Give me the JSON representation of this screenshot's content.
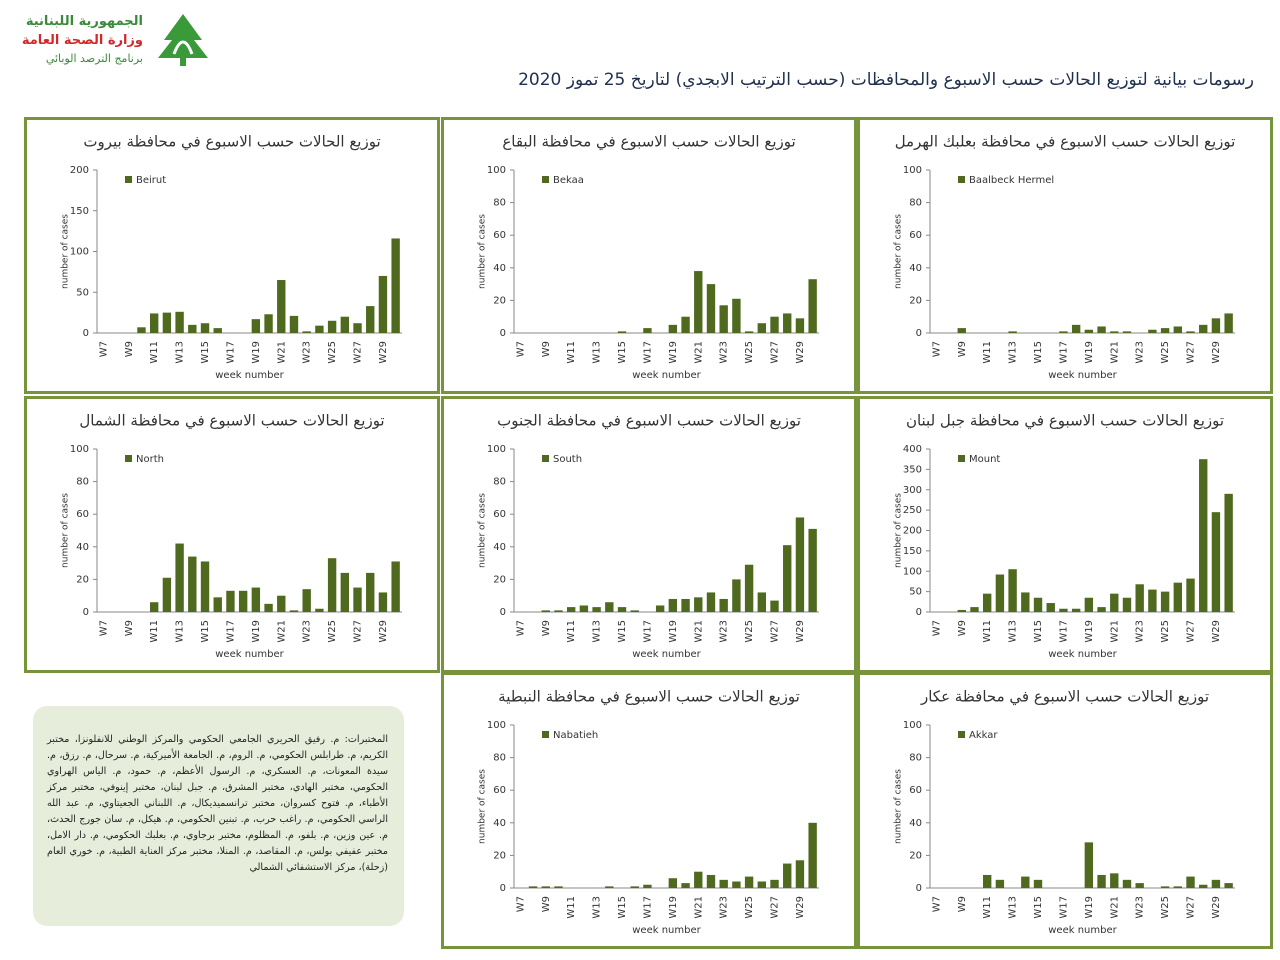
{
  "header": {
    "org_lines": [
      "الجمهورية اللبنانية",
      "وزارة الصحة العامة",
      "برنامج الترصد الوبائي"
    ]
  },
  "title": "رسومات بيانية لتوزيع الحالات حسب الاسبوع  والمحافظات (حسب الترتيب الابجدي) لتاريخ  25 تموز 2020",
  "note": "المختبرات: م. رفيق الحريري الجامعي الحكومي والمركز الوطني للانفلونزا، مختبر الكريم، م. طرابلس الحكومي، م. الروم، م. الجامعة الأميركية، م. سرحال، م. رزق، م. سيدة المعونات، م. العسكري، م. الرسول الأعظم، م. حمود، م. الياس الهراوي الحكومي، مختبر الهادي، مختبر المشرق، م. جبل لبنان، مختبر إينوفي، مختبر مركز الأطباء، م. فتوح كسروان، مختبر ترانسميديكال، م. اللبناني الجعيتاوي، م. عبد الله الراسي الحكومي، م. راغب حرب، م. تبنين الحكومي، م. هيكل، م. سان جورج الحدث، م. عين وزين، م. بلفو، م. المظلوم، مختبر برجاوي، م. بعلبك الحكومي، م. دار الامل، مختبر عفيفي بولس، م. المقاصد، م. المنلا، مختبر مركز العناية الطبية، م. خوري العام (زحلة)، مركز الاستشفائي الشمالي",
  "chart_data": [
    {
      "type": "bar",
      "title": "توزيع الحالات حسب الاسبوع  في محافظة بيروت",
      "x_label": "week number",
      "y_label": "number of cases",
      "color": "#4f6a1f",
      "categories": [
        "W7",
        null,
        "W9",
        null,
        "W11",
        null,
        "W13",
        null,
        "W15",
        null,
        "W17",
        null,
        "W19",
        null,
        "W21",
        null,
        "W23",
        null,
        "W25",
        null,
        "W27",
        null,
        "W29",
        null
      ],
      "series": [
        {
          "name": "Beirut",
          "color": "#4f6a1f",
          "values": [
            0,
            0,
            0,
            7,
            24,
            25,
            26,
            10,
            12,
            6,
            0,
            0,
            17,
            23,
            65,
            21,
            2,
            9,
            15,
            20,
            12,
            33,
            70,
            116
          ]
        }
      ],
      "ylim": [
        0,
        200
      ],
      "yticks": [
        0,
        50,
        100,
        150,
        200
      ]
    },
    {
      "type": "bar",
      "title": "توزيع الحالات حسب الاسبوع  في محافظة البقاع",
      "x_label": "week number",
      "y_label": "number of cases",
      "color": "#4f6a1f",
      "categories": [
        "W7",
        null,
        "W9",
        null,
        "W11",
        null,
        "W13",
        null,
        "W15",
        null,
        "W17",
        null,
        "W19",
        null,
        "W21",
        null,
        "W23",
        null,
        "W25",
        null,
        "W27",
        null,
        "W29",
        null
      ],
      "series": [
        {
          "name": "Bekaa",
          "color": "#4f6a1f",
          "values": [
            0,
            0,
            0,
            0,
            0,
            0,
            0,
            0,
            1,
            0,
            3,
            0,
            5,
            10,
            38,
            30,
            17,
            21,
            1,
            6,
            10,
            12,
            9,
            33
          ]
        }
      ],
      "ylim": [
        0,
        100
      ],
      "yticks": [
        0,
        20,
        40,
        60,
        80,
        100
      ]
    },
    {
      "type": "bar",
      "title": "توزيع الحالات حسب الاسبوع  في محافظة بعلبك الهرمل",
      "x_label": "week number",
      "y_label": "number of cases",
      "color": "#4f6a1f",
      "categories": [
        "W7",
        null,
        "W9",
        null,
        "W11",
        null,
        "W13",
        null,
        "W15",
        null,
        "W17",
        null,
        "W19",
        null,
        "W21",
        null,
        "W23",
        null,
        "W25",
        null,
        "W27",
        null,
        "W29",
        null
      ],
      "series": [
        {
          "name": "Baalbeck Hermel",
          "color": "#4f6a1f",
          "values": [
            0,
            0,
            3,
            0,
            0,
            0,
            1,
            0,
            0,
            0,
            1,
            5,
            2,
            4,
            1,
            1,
            0,
            2,
            3,
            4,
            1,
            5,
            9,
            12
          ]
        }
      ],
      "ylim": [
        0,
        100
      ],
      "yticks": [
        0,
        20,
        40,
        60,
        80,
        100
      ]
    },
    {
      "type": "bar",
      "title": "توزيع الحالات حسب الاسبوع  في محافظة الشمال",
      "x_label": "week number",
      "y_label": "number of cases",
      "color": "#4f6a1f",
      "categories": [
        "W7",
        null,
        "W9",
        null,
        "W11",
        null,
        "W13",
        null,
        "W15",
        null,
        "W17",
        null,
        "W19",
        null,
        "W21",
        null,
        "W23",
        null,
        "W25",
        null,
        "W27",
        null,
        "W29",
        null
      ],
      "series": [
        {
          "name": "North",
          "color": "#4f6a1f",
          "values": [
            0,
            0,
            0,
            0,
            6,
            21,
            42,
            34,
            31,
            9,
            13,
            13,
            15,
            5,
            10,
            1,
            14,
            2,
            33,
            24,
            15,
            24,
            12,
            31
          ]
        }
      ],
      "ylim": [
        0,
        100
      ],
      "yticks": [
        0,
        20,
        40,
        60,
        80,
        100
      ]
    },
    {
      "type": "bar",
      "title": "توزيع الحالات حسب الاسبوع  في محافظة الجنوب",
      "x_label": "week number",
      "y_label": "number of cases",
      "color": "#4f6a1f",
      "categories": [
        "W7",
        null,
        "W9",
        null,
        "W11",
        null,
        "W13",
        null,
        "W15",
        null,
        "W17",
        null,
        "W19",
        null,
        "W21",
        null,
        "W23",
        null,
        "W25",
        null,
        "W27",
        null,
        "W29",
        null
      ],
      "series": [
        {
          "name": "South",
          "color": "#4f6a1f",
          "values": [
            0,
            0,
            1,
            1,
            3,
            4,
            3,
            6,
            3,
            1,
            0,
            4,
            8,
            8,
            9,
            12,
            8,
            20,
            29,
            12,
            7,
            41,
            58,
            51
          ]
        }
      ],
      "ylim": [
        0,
        100
      ],
      "yticks": [
        0,
        20,
        40,
        60,
        80,
        100
      ]
    },
    {
      "type": "bar",
      "title": "توزيع الحالات حسب الاسبوع  في محافظة جبل لبنان",
      "x_label": "week number",
      "y_label": "number of cases",
      "color": "#4f6a1f",
      "categories": [
        "W7",
        null,
        "W9",
        null,
        "W11",
        null,
        "W13",
        null,
        "W15",
        null,
        "W17",
        null,
        "W19",
        null,
        "W21",
        null,
        "W23",
        null,
        "W25",
        null,
        "W27",
        null,
        "W29",
        null
      ],
      "series": [
        {
          "name": "Mount",
          "color": "#4f6a1f",
          "values": [
            0,
            0,
            5,
            12,
            45,
            92,
            105,
            48,
            35,
            22,
            8,
            8,
            35,
            12,
            45,
            35,
            68,
            55,
            50,
            72,
            82,
            375,
            245,
            290
          ]
        }
      ],
      "ylim": [
        0,
        400
      ],
      "yticks": [
        0,
        50,
        100,
        150,
        200,
        250,
        300,
        350,
        400
      ]
    },
    {
      "type": "bar",
      "title": "توزيع الحالات حسب الاسبوع  في محافظة النبطية",
      "x_label": "week number",
      "y_label": "number of cases",
      "color": "#4f6a1f",
      "categories": [
        "W7",
        null,
        "W9",
        null,
        "W11",
        null,
        "W13",
        null,
        "W15",
        null,
        "W17",
        null,
        "W19",
        null,
        "W21",
        null,
        "W23",
        null,
        "W25",
        null,
        "W27",
        null,
        "W29",
        null
      ],
      "series": [
        {
          "name": "Nabatieh",
          "color": "#4f6a1f",
          "values": [
            0,
            1,
            1,
            1,
            0,
            0,
            0,
            1,
            0,
            1,
            2,
            0,
            6,
            3,
            10,
            8,
            5,
            4,
            7,
            4,
            5,
            15,
            17,
            40
          ]
        }
      ],
      "ylim": [
        0,
        100
      ],
      "yticks": [
        0,
        20,
        40,
        60,
        80,
        100
      ]
    },
    {
      "type": "bar",
      "title": "توزيع الحالات حسب  الاسبوع  في محافظة عكار",
      "x_label": "week number",
      "y_label": "number of cases",
      "color": "#4f6a1f",
      "categories": [
        "W7",
        null,
        "W9",
        null,
        "W11",
        null,
        "W13",
        null,
        "W15",
        null,
        "W17",
        null,
        "W19",
        null,
        "W21",
        null,
        "W23",
        null,
        "W25",
        null,
        "W27",
        null,
        "W29",
        null
      ],
      "series": [
        {
          "name": "Akkar",
          "color": "#4f6a1f",
          "values": [
            0,
            0,
            0,
            0,
            8,
            5,
            0,
            7,
            5,
            0,
            0,
            0,
            28,
            8,
            9,
            5,
            3,
            0,
            1,
            1,
            7,
            2,
            5,
            3
          ]
        }
      ],
      "ylim": [
        0,
        100
      ],
      "yticks": [
        0,
        20,
        40,
        60,
        80,
        100
      ]
    }
  ]
}
